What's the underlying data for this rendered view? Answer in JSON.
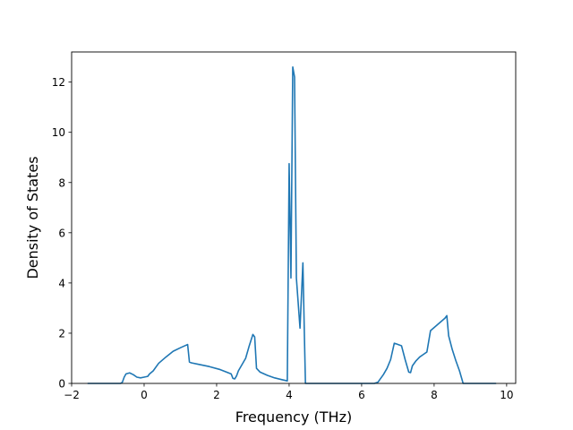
{
  "chart_data": {
    "type": "line",
    "title": "",
    "xlabel": "Frequency (THz)",
    "ylabel": "Density of States",
    "xlim": [
      -2.0,
      10.25
    ],
    "ylim": [
      0,
      13.2
    ],
    "xticks": [
      -2,
      0,
      2,
      4,
      6,
      8,
      10
    ],
    "xtick_labels": [
      "−2",
      "0",
      "2",
      "4",
      "6",
      "8",
      "10"
    ],
    "yticks": [
      0,
      2,
      4,
      6,
      8,
      10,
      12
    ],
    "ytick_labels": [
      "0",
      "2",
      "4",
      "6",
      "8",
      "10",
      "12"
    ],
    "grid": false,
    "line_color": "#1f77b4",
    "series": [
      {
        "x": [
          -1.55,
          -0.65,
          -0.6,
          -0.55,
          -0.5,
          -0.4,
          -0.3,
          -0.2,
          -0.1,
          0.0,
          0.1,
          0.15,
          0.25,
          0.4,
          0.6,
          0.8,
          1.0,
          1.2,
          1.25,
          1.3,
          1.5,
          1.8,
          2.1,
          2.4,
          2.45,
          2.5,
          2.55,
          2.6,
          2.7,
          2.8,
          2.9,
          3.0,
          3.05,
          3.1,
          3.2,
          3.4,
          3.6,
          3.8,
          3.95,
          4.0,
          4.05,
          4.1,
          4.15,
          4.2,
          4.3,
          4.38,
          4.42,
          4.45,
          4.5,
          4.6,
          6.35,
          6.45,
          6.5,
          6.6,
          6.7,
          6.8,
          6.9,
          6.95,
          7.0,
          7.1,
          7.2,
          7.3,
          7.35,
          7.4,
          7.5,
          7.6,
          7.7,
          7.8,
          7.9,
          8.1,
          8.3,
          8.35,
          8.4,
          8.5,
          8.6,
          8.7,
          8.75,
          8.8,
          9.7
        ],
        "y": [
          0,
          0,
          0.05,
          0.25,
          0.38,
          0.42,
          0.35,
          0.25,
          0.22,
          0.25,
          0.28,
          0.38,
          0.5,
          0.8,
          1.05,
          1.28,
          1.42,
          1.55,
          0.85,
          0.82,
          0.76,
          0.67,
          0.55,
          0.38,
          0.2,
          0.18,
          0.3,
          0.5,
          0.75,
          1.0,
          1.5,
          1.95,
          1.85,
          0.6,
          0.45,
          0.32,
          0.22,
          0.15,
          0.1,
          8.75,
          4.2,
          12.6,
          12.2,
          4.2,
          2.2,
          4.8,
          2.0,
          0,
          0,
          0,
          0,
          0.05,
          0.15,
          0.35,
          0.6,
          0.95,
          1.6,
          1.58,
          1.55,
          1.5,
          0.95,
          0.45,
          0.43,
          0.7,
          0.9,
          1.05,
          1.15,
          1.25,
          2.1,
          2.35,
          2.6,
          2.7,
          1.9,
          1.35,
          0.9,
          0.5,
          0.25,
          0,
          0
        ]
      }
    ]
  }
}
